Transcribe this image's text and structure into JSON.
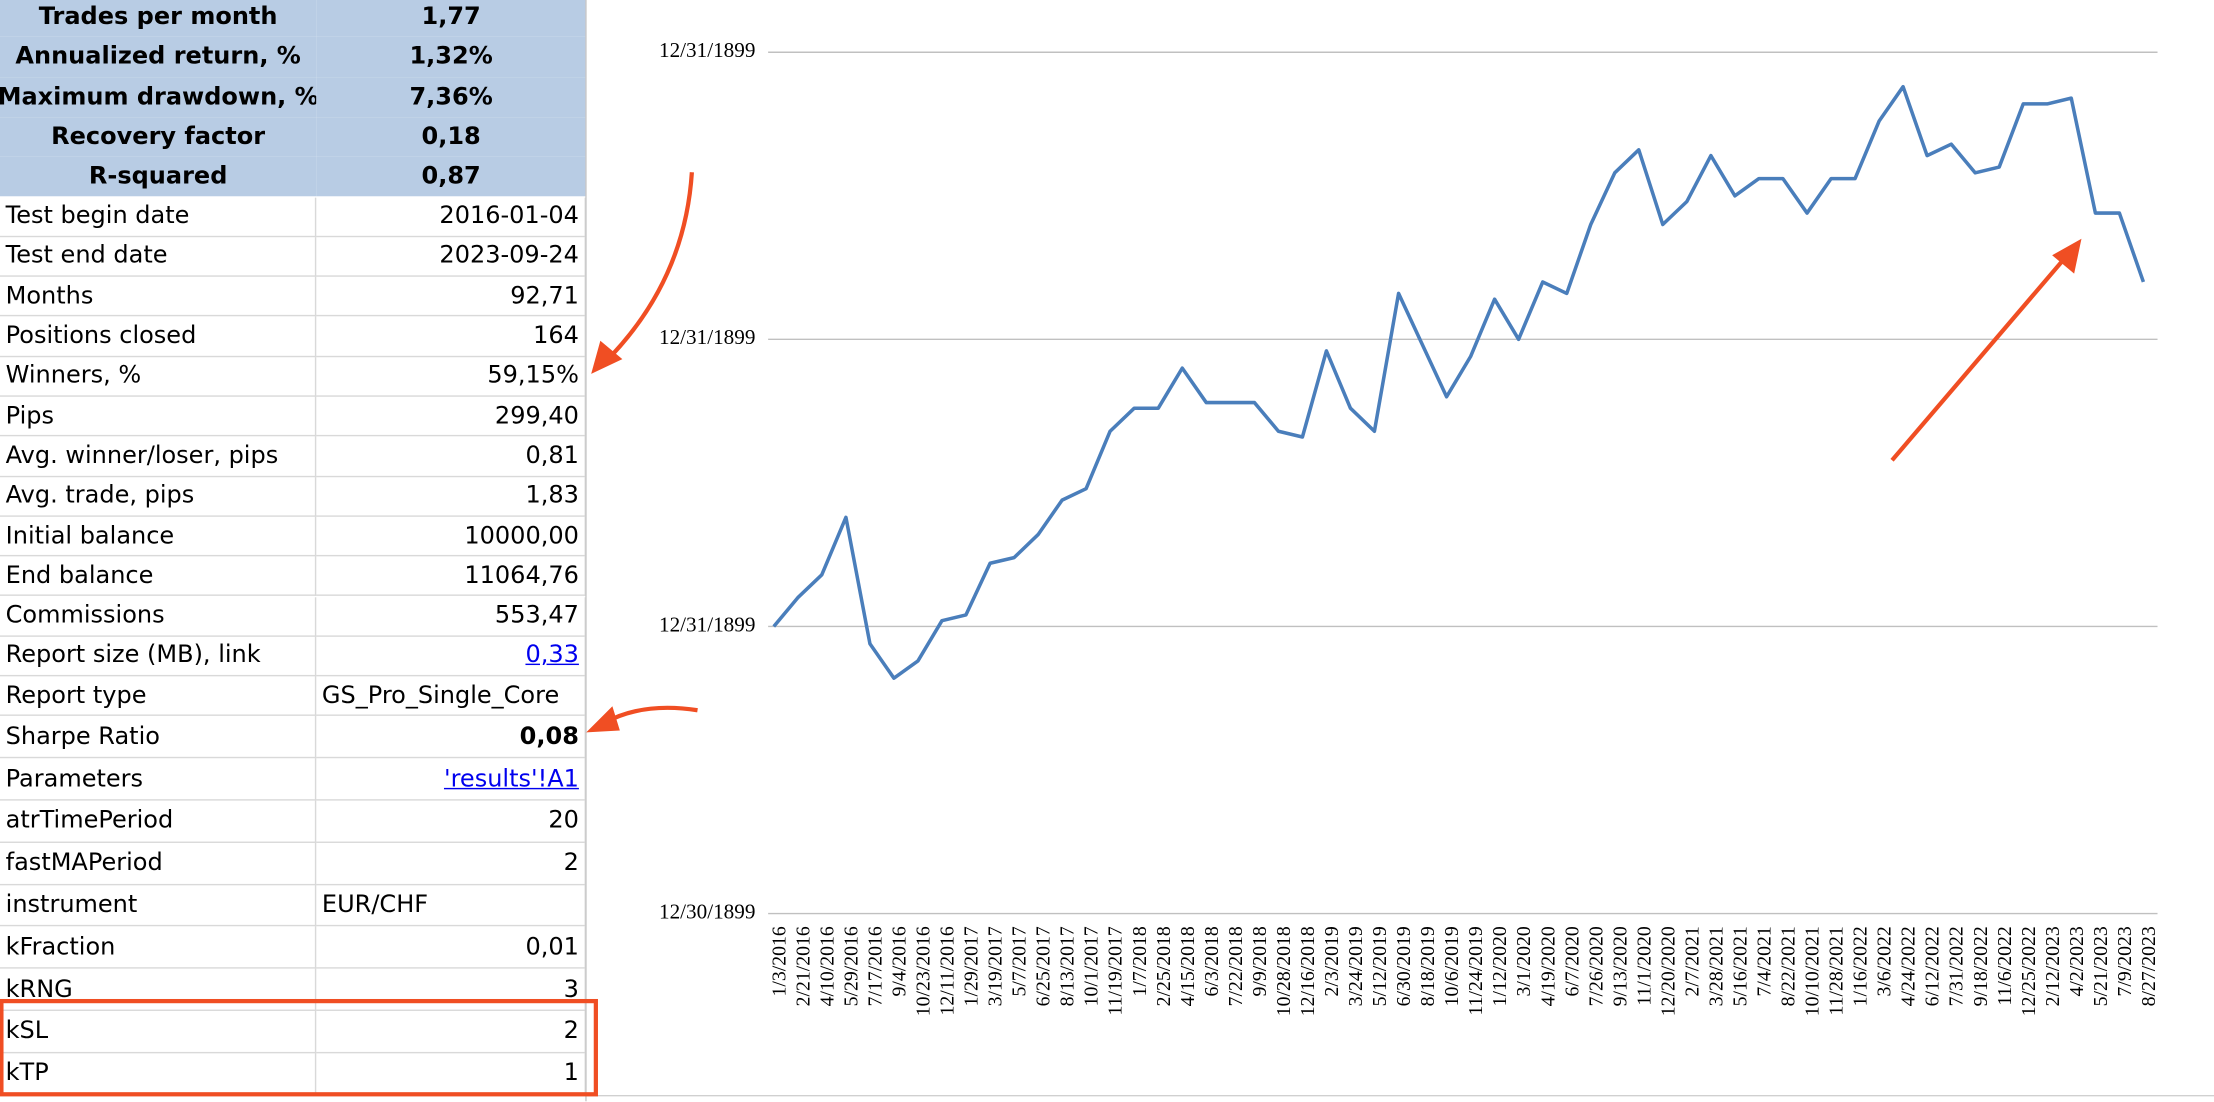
{
  "table": {
    "summary": [
      [
        "Trades per month",
        "1,77"
      ],
      [
        "Annualized return, %",
        "1,32%"
      ],
      [
        "Maximum drawdown, %",
        "7,36%"
      ],
      [
        "Recovery factor",
        "0,18"
      ],
      [
        "R-squared",
        "0,87"
      ]
    ],
    "rows": [
      [
        "Test begin date",
        "2016-01-04"
      ],
      [
        "Test end date",
        "2023-09-24"
      ],
      [
        "Months",
        "92,71"
      ],
      [
        "Positions closed",
        "164"
      ],
      [
        "Winners, %",
        "59,15%"
      ],
      [
        "Pips",
        "299,40"
      ],
      [
        "Avg. winner/loser, pips",
        "0,81"
      ],
      [
        "Avg. trade, pips",
        "1,83"
      ],
      [
        "Initial balance",
        "10000,00"
      ],
      [
        "End balance",
        "11064,76"
      ],
      [
        "Commissions",
        "553,47"
      ],
      [
        "Report size (MB), link",
        "0,33"
      ],
      [
        "Report type",
        "GS_Pro_Single_Core"
      ],
      [
        "Sharpe Ratio",
        "0,08"
      ],
      [
        "Parameters",
        "'results'!A1"
      ],
      [
        "atrTimePeriod",
        "20"
      ],
      [
        "fastMAPeriod",
        "2"
      ],
      [
        "instrument",
        "EUR/CHF"
      ],
      [
        "kFraction",
        "0,01"
      ],
      [
        "kRNG",
        "3"
      ],
      [
        "kSL",
        "2"
      ],
      [
        "kTP",
        "1"
      ]
    ]
  },
  "chart_data": {
    "type": "line",
    "color": "#4a7ebb",
    "categories": [
      "1/3/2016",
      "2/21/2016",
      "4/10/2016",
      "5/29/2016",
      "7/17/2016",
      "9/4/2016",
      "10/23/2016",
      "12/11/2016",
      "1/29/2017",
      "3/19/2017",
      "5/7/2017",
      "6/25/2017",
      "8/13/2017",
      "10/1/2017",
      "11/19/2017",
      "1/7/2018",
      "2/25/2018",
      "4/15/2018",
      "6/3/2018",
      "7/22/2018",
      "9/9/2018",
      "10/28/2018",
      "12/16/2018",
      "2/3/2019",
      "3/24/2019",
      "5/12/2019",
      "6/30/2019",
      "8/18/2019",
      "10/6/2019",
      "11/24/2019",
      "1/12/2020",
      "3/1/2020",
      "4/19/2020",
      "6/7/2020",
      "7/26/2020",
      "9/13/2020",
      "11/1/2020",
      "12/20/2020",
      "2/7/2021",
      "3/28/2021",
      "5/16/2021",
      "7/4/2021",
      "8/22/2021",
      "10/10/2021",
      "11/28/2021",
      "1/16/2022",
      "3/6/2022",
      "4/24/2022",
      "6/12/2022",
      "7/31/2022",
      "9/18/2022",
      "11/6/2022",
      "12/25/2022",
      "2/12/2023",
      "4/2/2023",
      "5/21/2023",
      "7/9/2023",
      "8/27/2023"
    ],
    "values": [
      1.0,
      1.005,
      1.009,
      1.019,
      0.997,
      0.991,
      0.994,
      1.001,
      1.002,
      1.011,
      1.012,
      1.016,
      1.022,
      1.024,
      1.034,
      1.038,
      1.038,
      1.045,
      1.039,
      1.039,
      1.039,
      1.034,
      1.033,
      1.048,
      1.038,
      1.034,
      1.058,
      1.049,
      1.04,
      1.047,
      1.057,
      1.05,
      1.06,
      1.058,
      1.07,
      1.079,
      1.083,
      1.07,
      1.074,
      1.082,
      1.075,
      1.078,
      1.078,
      1.072,
      1.078,
      1.078,
      1.088,
      1.094,
      1.082,
      1.084,
      1.079,
      1.08,
      1.091,
      1.091,
      1.092,
      1.072,
      1.072,
      1.06
    ],
    "ylim": [
      0.95,
      1.1
    ],
    "yticks": [
      {
        "value": 0.95,
        "label": "12/30/1899"
      },
      {
        "value": 1.0,
        "label": "12/31/1899"
      },
      {
        "value": 1.05,
        "label": "12/31/1899"
      },
      {
        "value": 1.1,
        "label": "12/31/1899"
      }
    ],
    "grid": true
  }
}
